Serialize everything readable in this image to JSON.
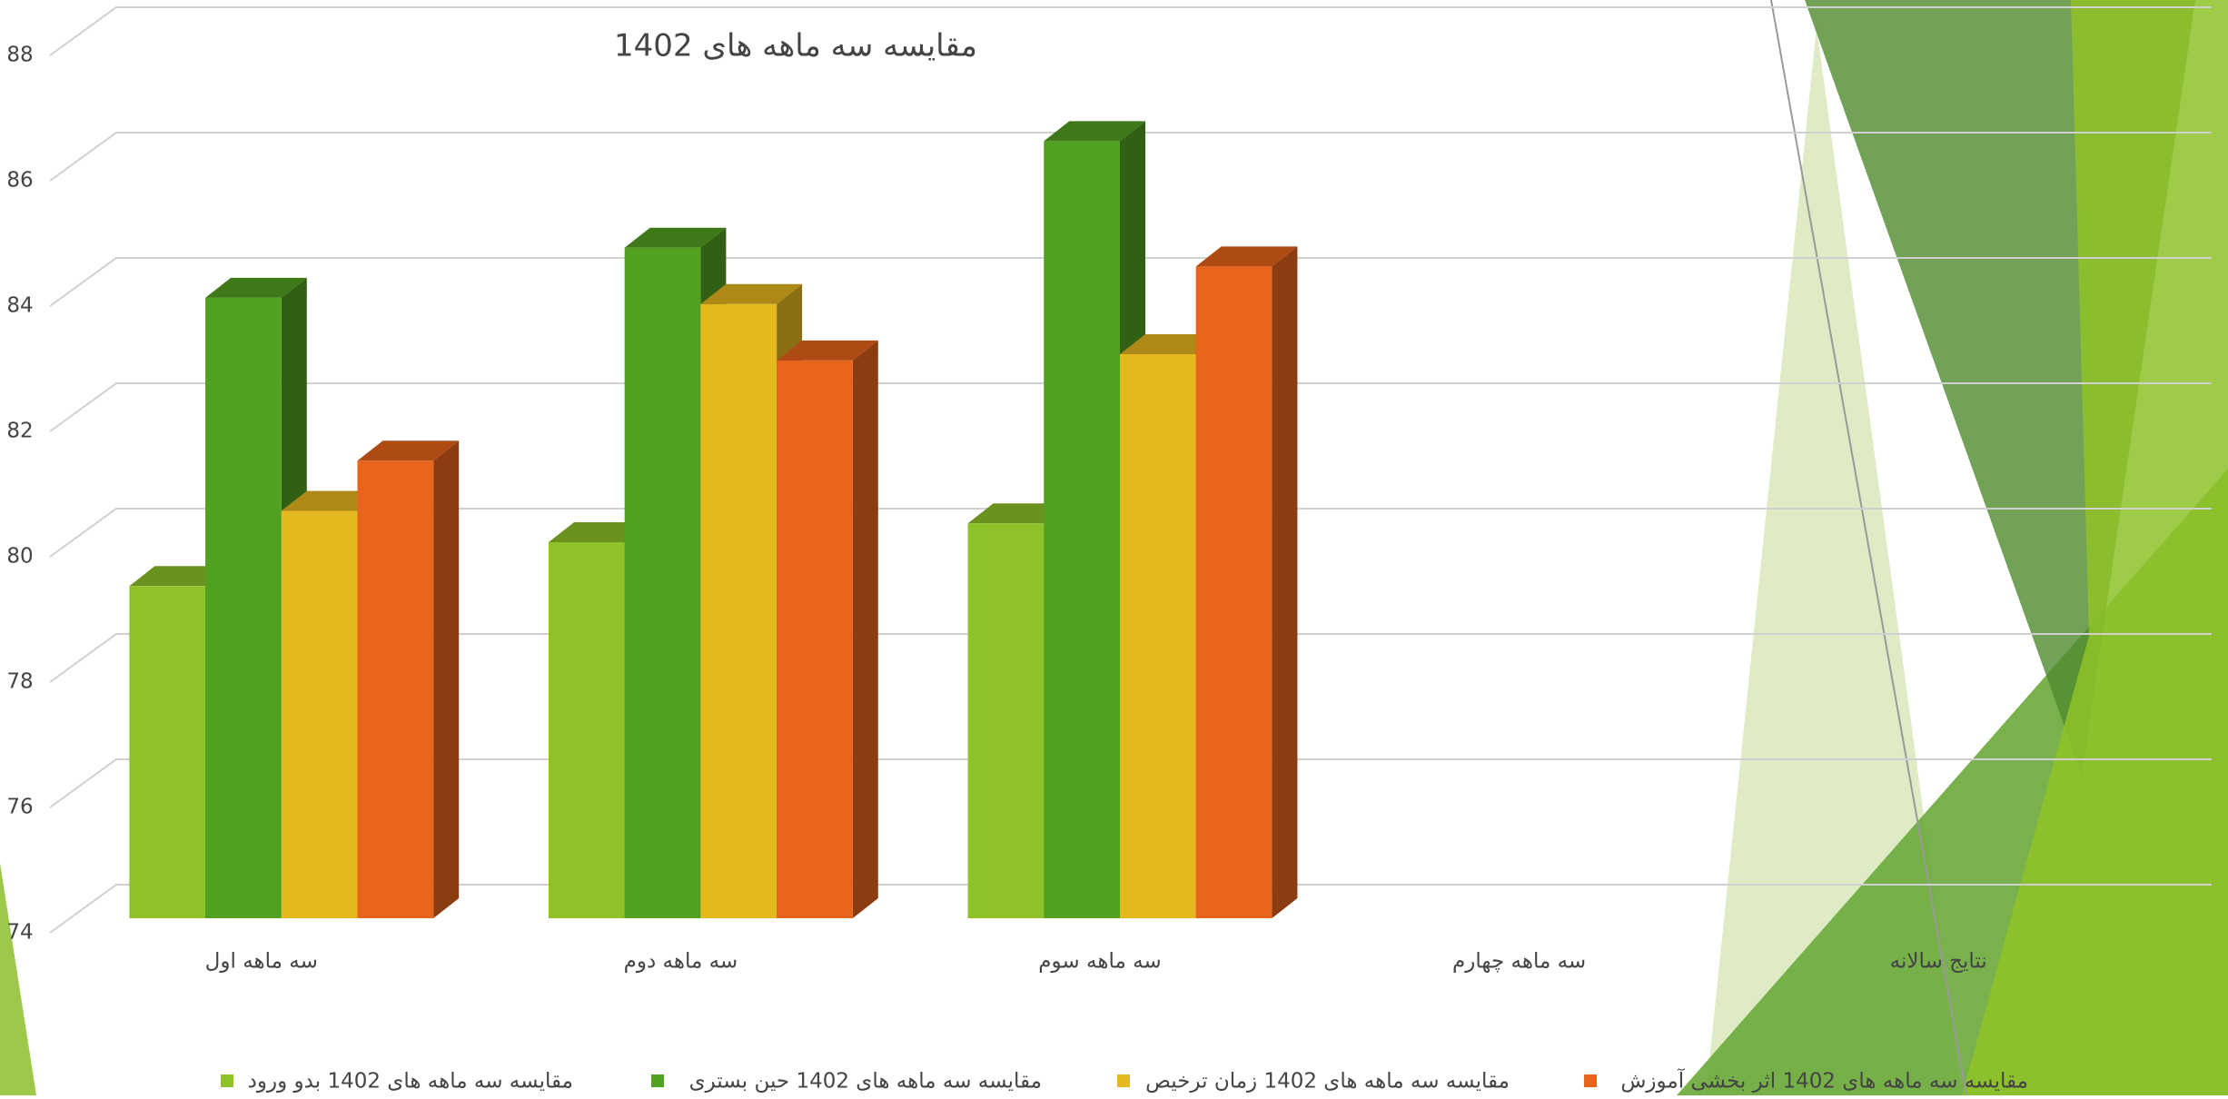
{
  "chart_data": {
    "type": "bar3d",
    "title": "مقایسه سه ماهه های 1402",
    "categories": [
      "سه ماهه اول",
      "سه ماهه دوم",
      "سه ماهه سوم",
      "سه ماهه چهارم",
      "نتایج سالانه"
    ],
    "series": [
      {
        "name": "مقایسه سه ماهه های 1402 بدو ورود",
        "color": "#8fc228",
        "values": [
          79.3,
          80.0,
          80.3,
          null,
          null
        ]
      },
      {
        "name": "مقایسه سه ماهه های 1402 حین بستری",
        "color": "#52a021",
        "values": [
          83.9,
          84.7,
          86.4,
          null,
          null
        ]
      },
      {
        "name": "مقایسه سه ماهه های 1402 زمان ترخیص",
        "color": "#e6b81f",
        "values": [
          80.5,
          83.8,
          83.0,
          null,
          null
        ]
      },
      {
        "name": "مقایسه سه ماهه های 1402 اثر بخشی آموزش",
        "color": "#e8641a",
        "values": [
          81.3,
          82.9,
          84.4,
          null,
          null
        ]
      }
    ],
    "ylim": [
      74,
      88
    ],
    "yticks": [
      74,
      76,
      78,
      80,
      82,
      84,
      86,
      88
    ],
    "grid": true,
    "legend": "bottom"
  }
}
